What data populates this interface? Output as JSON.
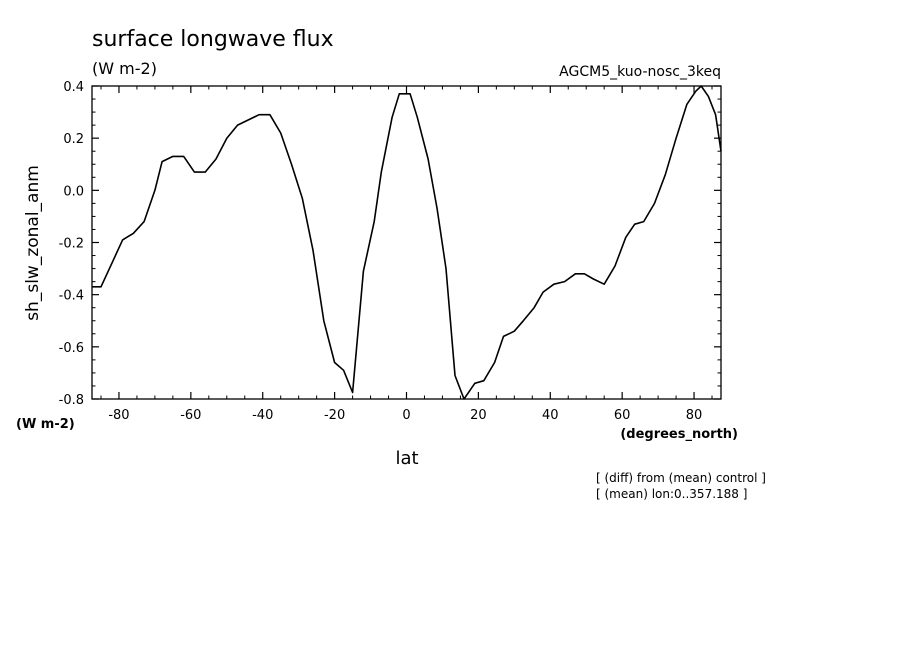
{
  "chart_data": {
    "type": "line",
    "title": "surface longwave flux",
    "subtitle": "(W m-2)",
    "run_label": "AGCM5_kuo-nosc_3keq",
    "ylabel": "sh_slw_zonal_anm",
    "y_units": "(W m-2)",
    "xlabel": "lat",
    "x_units": "(degrees_north)",
    "notes": [
      "[ (diff) from (mean) control ]",
      "[ (mean) lon:0..357.188 ]"
    ],
    "xlim": [
      -87.5,
      87.5
    ],
    "ylim": [
      -0.8,
      0.4
    ],
    "x_ticks": [
      -80,
      -60,
      -40,
      -20,
      0,
      20,
      40,
      60,
      80
    ],
    "x_tick_labels": [
      "-80",
      "-60",
      "-40",
      "-20",
      "0",
      "20",
      "40",
      "60",
      "80"
    ],
    "y_ticks": [
      0.4,
      0.2,
      0.0,
      -0.2,
      -0.4,
      -0.6,
      -0.8
    ],
    "y_tick_labels": [
      "0.4",
      "0.2",
      "0.0",
      "-0.2",
      "-0.4",
      "-0.6",
      "-0.8"
    ],
    "grid": false,
    "series": [
      {
        "x": [
          -87.5,
          -85,
          -82,
          -79,
          -76,
          -73,
          -70,
          -68,
          -65,
          -62,
          -59,
          -56,
          -53,
          -50,
          -47,
          -44,
          -41,
          -38,
          -35,
          -32,
          -29,
          -26,
          -23,
          -20,
          -17.5,
          -15,
          -12,
          -9,
          -7,
          -4,
          -2,
          0,
          1,
          3,
          6,
          8.5,
          11,
          13.5,
          16,
          17,
          19,
          21.5,
          24.5,
          27,
          30,
          32.5,
          35.5,
          38,
          41,
          44,
          47,
          49.5,
          52,
          55,
          58,
          61,
          63.5,
          66,
          69,
          72,
          75,
          78,
          80.5,
          82,
          84,
          86,
          87.5
        ],
        "y": [
          -0.37,
          -0.37,
          -0.28,
          -0.19,
          -0.165,
          -0.12,
          0.0,
          0.11,
          0.13,
          0.13,
          0.07,
          0.07,
          0.12,
          0.2,
          0.25,
          0.27,
          0.29,
          0.29,
          0.22,
          0.1,
          -0.03,
          -0.23,
          -0.5,
          -0.66,
          -0.69,
          -0.775,
          -0.31,
          -0.12,
          0.07,
          0.28,
          0.37,
          0.37,
          0.37,
          0.28,
          0.12,
          -0.07,
          -0.3,
          -0.71,
          -0.8,
          -0.78,
          -0.74,
          -0.73,
          -0.66,
          -0.56,
          -0.54,
          -0.5,
          -0.45,
          -0.39,
          -0.36,
          -0.35,
          -0.32,
          -0.32,
          -0.34,
          -0.36,
          -0.29,
          -0.18,
          -0.13,
          -0.12,
          -0.05,
          0.06,
          0.2,
          0.33,
          0.38,
          0.4,
          0.36,
          0.29,
          0.15
        ]
      }
    ],
    "line_color": "#000000"
  }
}
